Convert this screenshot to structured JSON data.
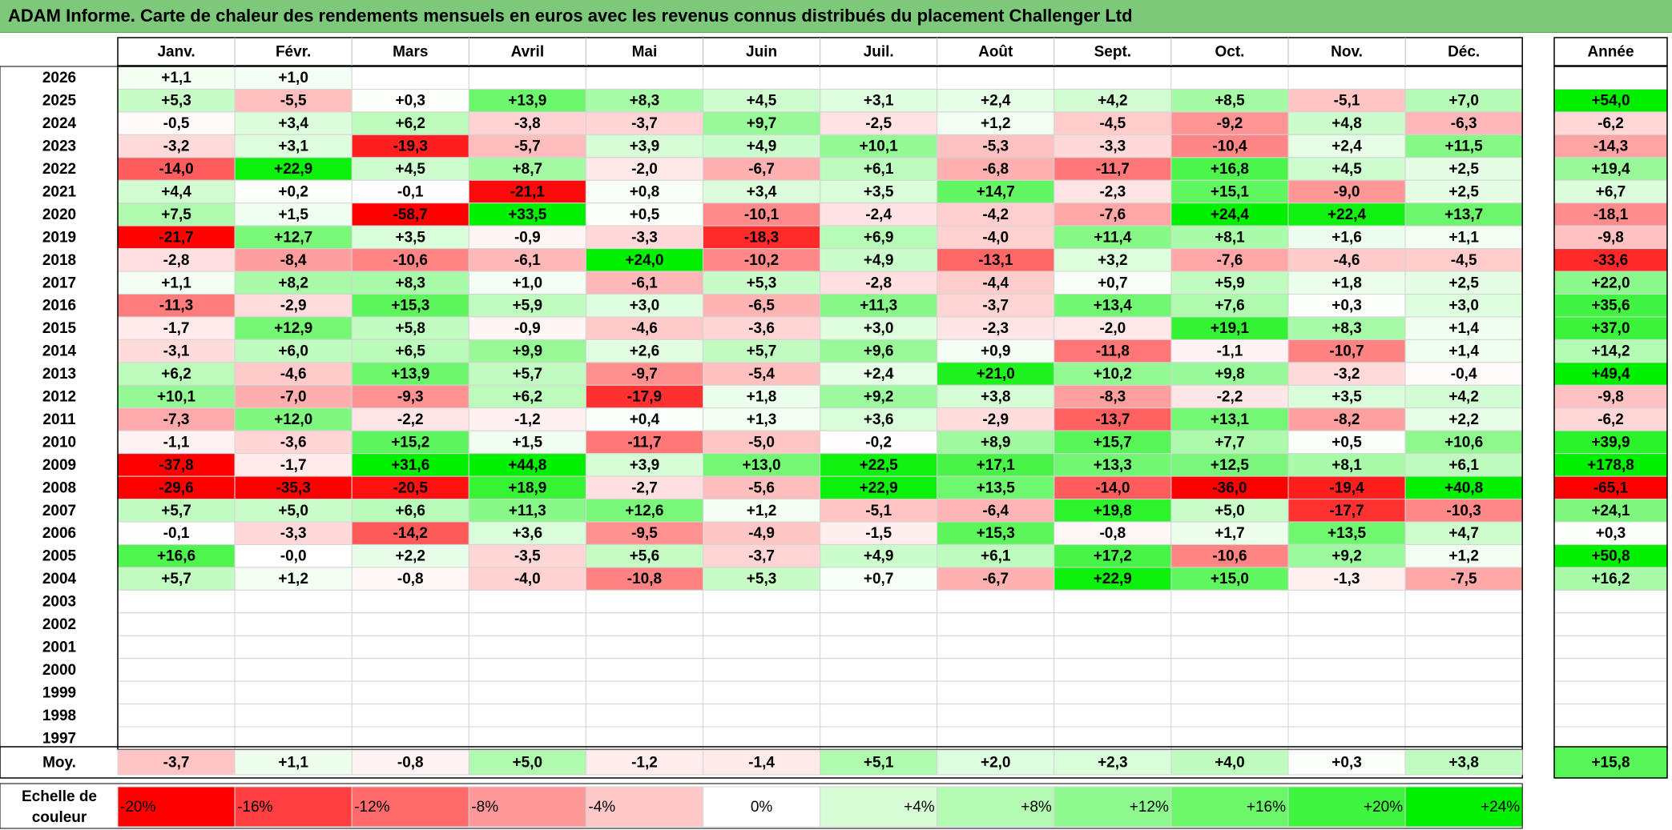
{
  "title": "ADAM Informe. Carte de chaleur des rendements mensuels en euros avec les revenus connus distribués du placement Challenger Ltd",
  "chart_data": {
    "type": "heatmap",
    "months": [
      "Janv.",
      "Févr.",
      "Mars",
      "Avril",
      "Mai",
      "Juin",
      "Juil.",
      "Août",
      "Sept.",
      "Oct.",
      "Nov.",
      "Déc."
    ],
    "year_header": "Année",
    "rows": [
      {
        "year": "2026",
        "values": [
          "+1,1",
          "+1,0",
          "",
          "",
          "",
          "",
          "",
          "",
          "",
          "",
          "",
          ""
        ],
        "annual": ""
      },
      {
        "year": "2025",
        "values": [
          "+5,3",
          "-5,5",
          "+0,3",
          "+13,9",
          "+8,3",
          "+4,5",
          "+3,1",
          "+2,4",
          "+4,2",
          "+8,5",
          "-5,1",
          "+7,0"
        ],
        "annual": "+54,0"
      },
      {
        "year": "2024",
        "values": [
          "-0,5",
          "+3,4",
          "+6,2",
          "-3,8",
          "-3,7",
          "+9,7",
          "-2,5",
          "+1,2",
          "-4,5",
          "-9,2",
          "+4,8",
          "-6,3"
        ],
        "annual": "-6,2"
      },
      {
        "year": "2023",
        "values": [
          "-3,2",
          "+3,1",
          "-19,3",
          "-5,7",
          "+3,9",
          "+4,9",
          "+10,1",
          "-5,3",
          "-3,3",
          "-10,4",
          "+2,4",
          "+11,5"
        ],
        "annual": "-14,3"
      },
      {
        "year": "2022",
        "values": [
          "-14,0",
          "+22,9",
          "+4,5",
          "+8,7",
          "-2,0",
          "-6,7",
          "+6,1",
          "-6,8",
          "-11,7",
          "+16,8",
          "+4,5",
          "+2,5"
        ],
        "annual": "+19,4"
      },
      {
        "year": "2021",
        "values": [
          "+4,4",
          "+0,2",
          "-0,1",
          "-21,1",
          "+0,8",
          "+3,4",
          "+3,5",
          "+14,7",
          "-2,3",
          "+15,1",
          "-9,0",
          "+2,5"
        ],
        "annual": "+6,7"
      },
      {
        "year": "2020",
        "values": [
          "+7,5",
          "+1,5",
          "-58,7",
          "+33,5",
          "+0,5",
          "-10,1",
          "-2,4",
          "-4,2",
          "-7,6",
          "+24,4",
          "+22,4",
          "+13,7"
        ],
        "annual": "-18,1"
      },
      {
        "year": "2019",
        "values": [
          "-21,7",
          "+12,7",
          "+3,5",
          "-0,9",
          "-3,3",
          "-18,3",
          "+6,9",
          "-4,0",
          "+11,4",
          "+8,1",
          "+1,6",
          "+1,1"
        ],
        "annual": "-9,8"
      },
      {
        "year": "2018",
        "values": [
          "-2,8",
          "-8,4",
          "-10,6",
          "-6,1",
          "+24,0",
          "-10,2",
          "+4,9",
          "-13,1",
          "+3,2",
          "-7,6",
          "-4,6",
          "-4,5"
        ],
        "annual": "-33,6"
      },
      {
        "year": "2017",
        "values": [
          "+1,1",
          "+8,2",
          "+8,3",
          "+1,0",
          "-6,1",
          "+5,3",
          "-2,8",
          "-4,4",
          "+0,7",
          "+5,9",
          "+1,8",
          "+2,5"
        ],
        "annual": "+22,0"
      },
      {
        "year": "2016",
        "values": [
          "-11,3",
          "-2,9",
          "+15,3",
          "+5,9",
          "+3,0",
          "-6,5",
          "+11,3",
          "-3,7",
          "+13,4",
          "+7,6",
          "+0,3",
          "+3,0"
        ],
        "annual": "+35,6"
      },
      {
        "year": "2015",
        "values": [
          "-1,7",
          "+12,9",
          "+5,8",
          "-0,9",
          "-4,6",
          "-3,6",
          "+3,0",
          "-2,3",
          "-2,0",
          "+19,1",
          "+8,3",
          "+1,4"
        ],
        "annual": "+37,0"
      },
      {
        "year": "2014",
        "values": [
          "-3,1",
          "+6,0",
          "+6,5",
          "+9,9",
          "+2,6",
          "+5,7",
          "+9,6",
          "+0,9",
          "-11,8",
          "-1,1",
          "-10,7",
          "+1,4"
        ],
        "annual": "+14,2"
      },
      {
        "year": "2013",
        "values": [
          "+6,2",
          "-4,6",
          "+13,9",
          "+5,7",
          "-9,7",
          "-5,4",
          "+2,4",
          "+21,0",
          "+10,2",
          "+9,8",
          "-3,2",
          "-0,4"
        ],
        "annual": "+49,4"
      },
      {
        "year": "2012",
        "values": [
          "+10,1",
          "-7,0",
          "-9,3",
          "+6,2",
          "-17,9",
          "+1,8",
          "+9,2",
          "+3,8",
          "-8,3",
          "-2,2",
          "+3,5",
          "+4,2"
        ],
        "annual": "-9,8"
      },
      {
        "year": "2011",
        "values": [
          "-7,3",
          "+12,0",
          "-2,2",
          "-1,2",
          "+0,4",
          "+1,3",
          "+3,6",
          "-2,9",
          "-13,7",
          "+13,1",
          "-8,2",
          "+2,2"
        ],
        "annual": "-6,2"
      },
      {
        "year": "2010",
        "values": [
          "-1,1",
          "-3,6",
          "+15,2",
          "+1,5",
          "-11,7",
          "-5,0",
          "-0,2",
          "+8,9",
          "+15,7",
          "+7,7",
          "+0,5",
          "+10,6"
        ],
        "annual": "+39,9"
      },
      {
        "year": "2009",
        "values": [
          "-37,8",
          "-1,7",
          "+31,6",
          "+44,8",
          "+3,9",
          "+13,0",
          "+22,5",
          "+17,1",
          "+13,3",
          "+12,5",
          "+8,1",
          "+6,1"
        ],
        "annual": "+178,8"
      },
      {
        "year": "2008",
        "values": [
          "-29,6",
          "-35,3",
          "-20,5",
          "+18,9",
          "-2,7",
          "-5,6",
          "+22,9",
          "+13,5",
          "-14,0",
          "-36,0",
          "-19,4",
          "+40,8"
        ],
        "annual": "-65,1"
      },
      {
        "year": "2007",
        "values": [
          "+5,7",
          "+5,0",
          "+6,6",
          "+11,3",
          "+12,6",
          "+1,2",
          "-5,1",
          "-6,4",
          "+19,8",
          "+5,0",
          "-17,7",
          "-10,3"
        ],
        "annual": "+24,1"
      },
      {
        "year": "2006",
        "values": [
          "-0,1",
          "-3,3",
          "-14,2",
          "+3,6",
          "-9,5",
          "-4,9",
          "-1,5",
          "+15,3",
          "-0,8",
          "+1,7",
          "+13,5",
          "+4,7"
        ],
        "annual": "+0,3"
      },
      {
        "year": "2005",
        "values": [
          "+16,6",
          "-0,0",
          "+2,2",
          "-3,5",
          "+5,6",
          "-3,7",
          "+4,9",
          "+6,1",
          "+17,2",
          "-10,6",
          "+9,2",
          "+1,2"
        ],
        "annual": "+50,8"
      },
      {
        "year": "2004",
        "values": [
          "+5,7",
          "+1,2",
          "-0,8",
          "-4,0",
          "-10,8",
          "+5,3",
          "+0,7",
          "-6,7",
          "+22,9",
          "+15,0",
          "-1,3",
          "-7,5"
        ],
        "annual": "+16,2"
      },
      {
        "year": "2003",
        "values": [
          "",
          "",
          "",
          "",
          "",
          "",
          "",
          "",
          "",
          "",
          "",
          ""
        ],
        "annual": ""
      },
      {
        "year": "2002",
        "values": [
          "",
          "",
          "",
          "",
          "",
          "",
          "",
          "",
          "",
          "",
          "",
          ""
        ],
        "annual": ""
      },
      {
        "year": "2001",
        "values": [
          "",
          "",
          "",
          "",
          "",
          "",
          "",
          "",
          "",
          "",
          "",
          ""
        ],
        "annual": ""
      },
      {
        "year": "2000",
        "values": [
          "",
          "",
          "",
          "",
          "",
          "",
          "",
          "",
          "",
          "",
          "",
          ""
        ],
        "annual": ""
      },
      {
        "year": "1999",
        "values": [
          "",
          "",
          "",
          "",
          "",
          "",
          "",
          "",
          "",
          "",
          "",
          ""
        ],
        "annual": ""
      },
      {
        "year": "1998",
        "values": [
          "",
          "",
          "",
          "",
          "",
          "",
          "",
          "",
          "",
          "",
          "",
          ""
        ],
        "annual": ""
      },
      {
        "year": "1997",
        "values": [
          "",
          "",
          "",
          "",
          "",
          "",
          "",
          "",
          "",
          "",
          "",
          ""
        ],
        "annual": ""
      }
    ],
    "average": {
      "label": "Moy.",
      "values": [
        "-3,7",
        "+1,1",
        "-0,8",
        "+5,0",
        "-1,2",
        "-1,4",
        "+5,1",
        "+2,0",
        "+2,3",
        "+4,0",
        "+0,3",
        "+3,8"
      ],
      "annual": "+15,8"
    },
    "scale": {
      "label": "Echelle de couleur",
      "stops": [
        "-20%",
        "-16%",
        "-12%",
        "-8%",
        "-4%",
        "0%",
        "+4%",
        "+8%",
        "+12%",
        "+16%",
        "+20%",
        "+24%"
      ],
      "colors": [
        "#ff0000",
        "#ff3f3f",
        "#ff6a6a",
        "#ff9999",
        "#ffc9c9",
        "#ffffff",
        "#d7fdd7",
        "#b3fbb3",
        "#8ef98e",
        "#6af76a",
        "#3ff53f",
        "#00f000"
      ]
    },
    "colors": {
      "title_bg": "#7dc97a",
      "negative_max": "#ff0000",
      "positive_max": "#00f000",
      "neutral": "#ffffff"
    }
  }
}
